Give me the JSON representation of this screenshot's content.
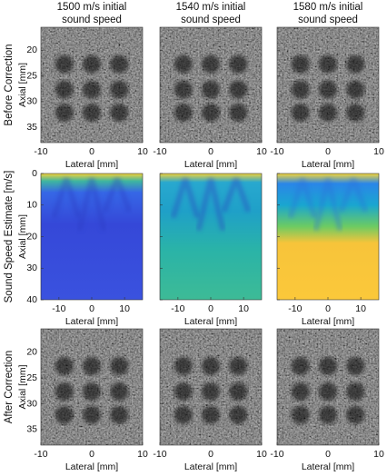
{
  "columns": [
    {
      "title_lines": [
        "1500 m/s initial",
        "sound speed"
      ]
    },
    {
      "title_lines": [
        "1540 m/s initial",
        "sound speed"
      ]
    },
    {
      "title_lines": [
        "1580 m/s initial",
        "sound speed"
      ]
    }
  ],
  "rows": [
    {
      "label": "Before Correction",
      "y_label": "Axial [mm]",
      "x_label": "Lateral [mm]",
      "xlim": [
        -10,
        10
      ],
      "ylim": [
        15.5,
        38
      ],
      "xticks": [
        -10,
        0,
        10
      ],
      "yticks": [
        20,
        25,
        30,
        35
      ]
    },
    {
      "label": "Sound Speed Estimate [m/s]",
      "y_label": "Axial [mm]",
      "x_label": "Lateral [mm]",
      "xlim": [
        -15.5,
        15.5
      ],
      "ylim": [
        0,
        40
      ],
      "xticks": [
        -10,
        0,
        10
      ],
      "yticks": [
        0,
        10,
        20,
        30,
        40
      ]
    },
    {
      "label": "After Correction",
      "y_label": "Axial [mm]",
      "x_label": "Lateral [mm]",
      "xlim": [
        -10,
        10
      ],
      "ylim": [
        15.5,
        38
      ],
      "xticks": [
        -10,
        0,
        10
      ],
      "yticks": [
        20,
        25,
        30,
        35
      ]
    }
  ]
}
